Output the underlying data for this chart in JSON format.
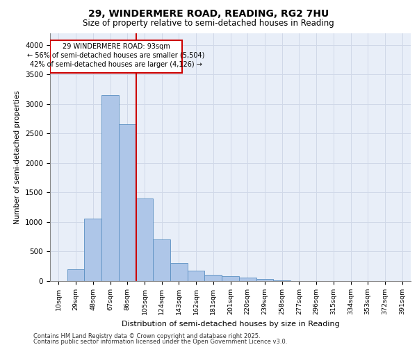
{
  "title_line1": "29, WINDERMERE ROAD, READING, RG2 7HU",
  "title_line2": "Size of property relative to semi-detached houses in Reading",
  "xlabel": "Distribution of semi-detached houses by size in Reading",
  "ylabel": "Number of semi-detached properties",
  "categories": [
    "10sqm",
    "29sqm",
    "48sqm",
    "67sqm",
    "86sqm",
    "105sqm",
    "124sqm",
    "143sqm",
    "162sqm",
    "181sqm",
    "201sqm",
    "220sqm",
    "239sqm",
    "258sqm",
    "277sqm",
    "296sqm",
    "315sqm",
    "334sqm",
    "353sqm",
    "372sqm",
    "391sqm"
  ],
  "values": [
    5,
    200,
    1060,
    3150,
    2650,
    1400,
    700,
    300,
    175,
    105,
    80,
    55,
    30,
    10,
    5,
    3,
    2,
    1,
    0,
    0,
    0
  ],
  "bar_color": "#aec6e8",
  "bar_edge_color": "#5a8fc2",
  "property_line_x": 4.5,
  "annotation_title": "29 WINDERMERE ROAD: 93sqm",
  "annotation_line2": "← 56% of semi-detached houses are smaller (5,504)",
  "annotation_line3": "42% of semi-detached houses are larger (4,126) →",
  "annotation_box_color": "#cc0000",
  "vline_color": "#cc0000",
  "ylim": [
    0,
    4200
  ],
  "yticks": [
    0,
    500,
    1000,
    1500,
    2000,
    2500,
    3000,
    3500,
    4000
  ],
  "grid_color": "#d0d8e8",
  "background_color": "#e8eef8",
  "footer_line1": "Contains HM Land Registry data © Crown copyright and database right 2025.",
  "footer_line2": "Contains public sector information licensed under the Open Government Licence v3.0."
}
